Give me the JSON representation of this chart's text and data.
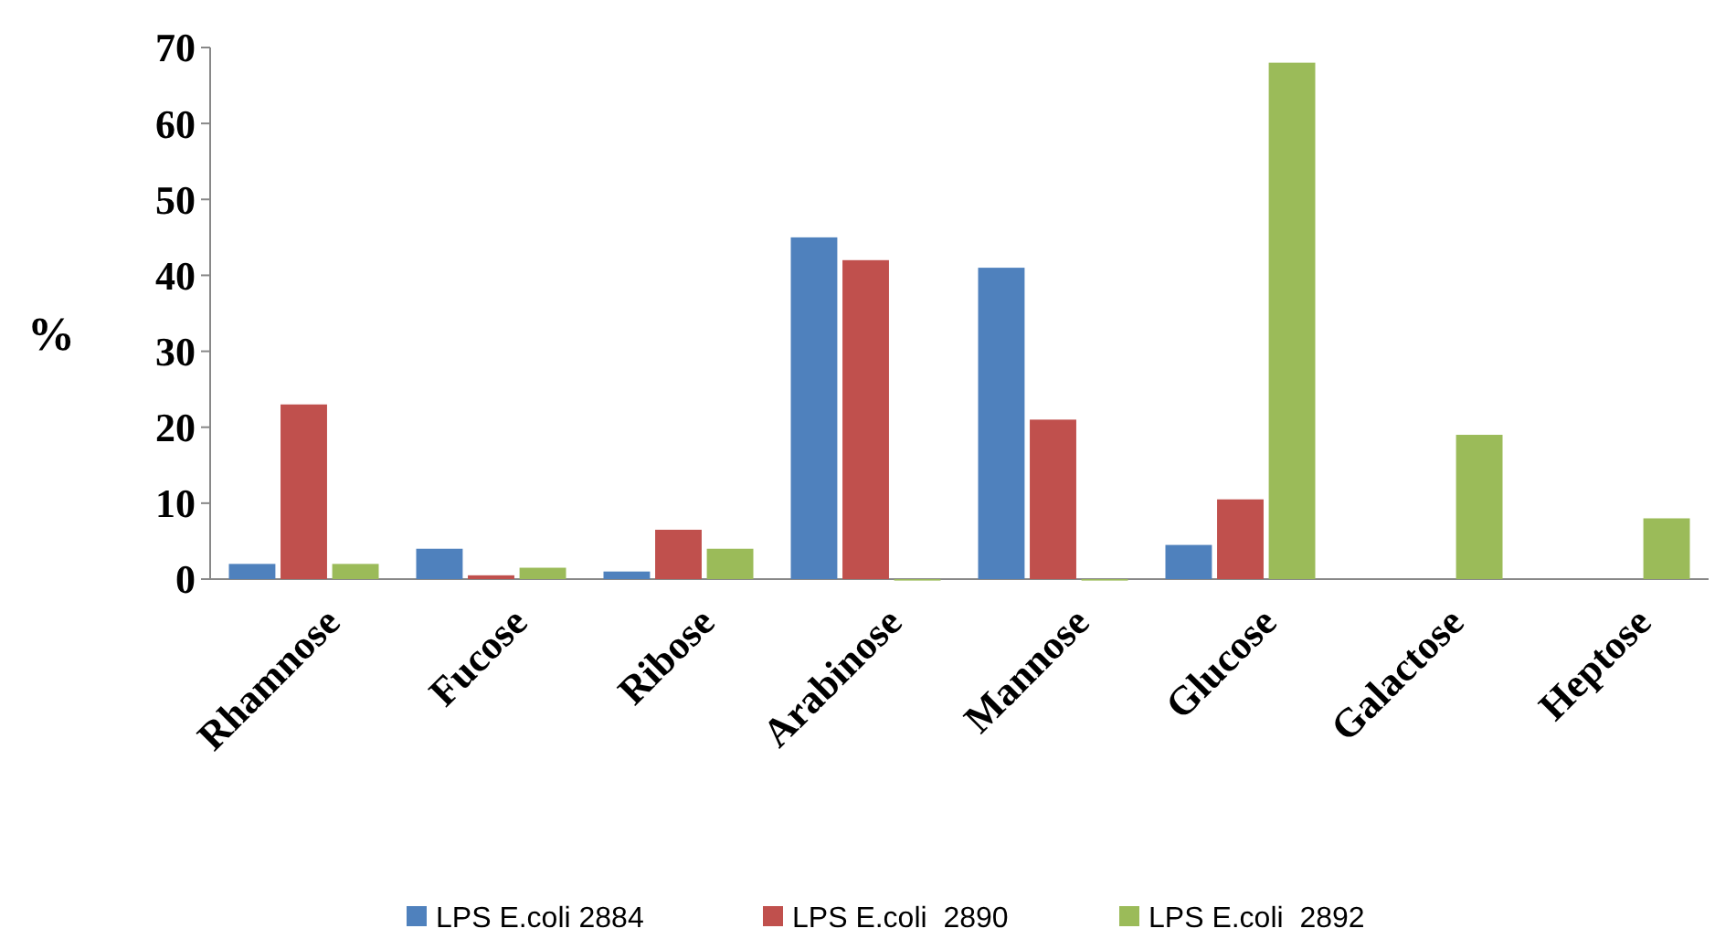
{
  "chart_data": {
    "type": "bar",
    "ylabel": "%",
    "categories": [
      "Rhamnose",
      "Fucose",
      "Ribose",
      "Arabinose",
      "Mannose",
      "Glucose",
      "Galactose",
      "Heptose"
    ],
    "series": [
      {
        "name": "LPS E.coli 2884",
        "color": "#4f81bd",
        "values": [
          2,
          4,
          1,
          45,
          41,
          4.5,
          null,
          null
        ]
      },
      {
        "name": "LPS E.coli  2890",
        "color": "#c0504d",
        "values": [
          23,
          0.5,
          6.5,
          42,
          21,
          10.5,
          null,
          null
        ]
      },
      {
        "name": "LPS E.coli  2892",
        "color": "#9bbb59",
        "values": [
          2,
          1.5,
          4,
          0,
          0,
          68,
          19,
          8
        ]
      }
    ],
    "ylim": [
      0,
      70
    ],
    "yticks": [
      0,
      10,
      20,
      30,
      40,
      50,
      60,
      70
    ],
    "grid": false,
    "legend": "bottom"
  }
}
